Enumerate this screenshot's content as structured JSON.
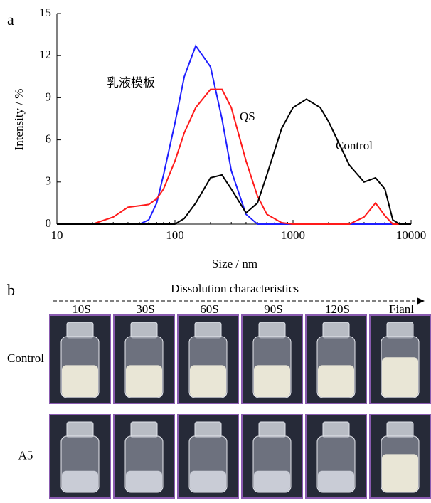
{
  "chart_data": {
    "type": "line",
    "label": "a",
    "xlabel": "Size / nm",
    "ylabel": "Intensity / %",
    "log_x": true,
    "xlim": [
      10,
      10000
    ],
    "xticks": [
      10,
      100,
      1000,
      10000
    ],
    "ylim": [
      0,
      15
    ],
    "yticks": [
      0,
      3,
      6,
      9,
      12,
      15
    ],
    "x": [
      10,
      20,
      30,
      40,
      50,
      60,
      70,
      80,
      100,
      120,
      150,
      200,
      250,
      300,
      400,
      500,
      600,
      800,
      1000,
      1300,
      1700,
      2000,
      3000,
      4000,
      5000,
      6000,
      7000,
      8000,
      10000
    ],
    "series": [
      {
        "name": "乳液模板",
        "color": "#1f1fff",
        "values": [
          0,
          0,
          0,
          0,
          0,
          0.3,
          1.5,
          3.5,
          7.2,
          10.5,
          12.7,
          11.2,
          7.5,
          3.8,
          0.7,
          0,
          0,
          0,
          0,
          0,
          0,
          0,
          0,
          0,
          0,
          0,
          0,
          0,
          0
        ]
      },
      {
        "name": "QS",
        "color": "#ff1a1a",
        "values": [
          0,
          0,
          0.5,
          1.2,
          1.3,
          1.4,
          1.8,
          2.5,
          4.5,
          6.5,
          8.3,
          9.6,
          9.6,
          8.3,
          4.5,
          2,
          0.7,
          0.1,
          0,
          0,
          0,
          0,
          0,
          0.5,
          1.5,
          0.6,
          0,
          0,
          0
        ]
      },
      {
        "name": "Control",
        "color": "#000000",
        "values": [
          0,
          0,
          0,
          0,
          0,
          0,
          0,
          0,
          0,
          0.4,
          1.5,
          3.3,
          3.5,
          2.5,
          0.8,
          1.5,
          3.5,
          6.8,
          8.3,
          8.9,
          8.3,
          7.3,
          4.2,
          3.0,
          3.3,
          2.5,
          0.3,
          0,
          0
        ]
      }
    ]
  },
  "panel_b": {
    "label": "b",
    "title": "Dissolution characteristics",
    "columns": [
      "10S",
      "30S",
      "60S",
      "90S",
      "120S",
      "Fianl"
    ],
    "rows": [
      "Control",
      "A5"
    ]
  }
}
